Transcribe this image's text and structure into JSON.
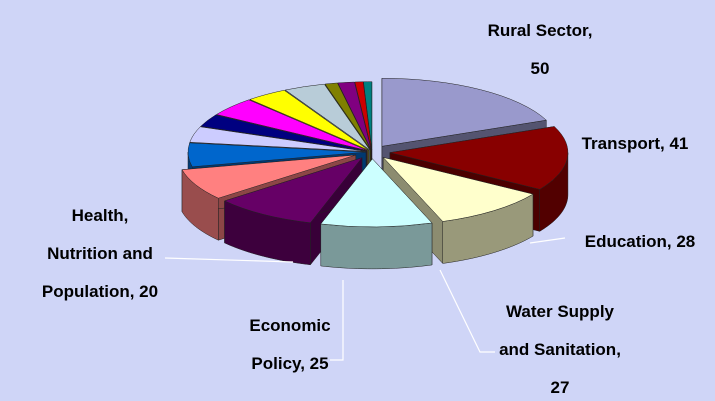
{
  "chart_data": {
    "type": "pie3d",
    "categories": [
      "Rural Sector",
      "Transport",
      "Education",
      "Water Supply and Sanitation",
      "Economic Policy",
      "Health, Nutrition and Population",
      null,
      null,
      null,
      null,
      null,
      null,
      null,
      null,
      null,
      null
    ],
    "values": [
      50,
      41,
      28,
      27,
      25,
      20,
      15,
      10,
      8,
      12,
      10,
      10,
      3,
      4,
      2,
      2
    ],
    "value_labels": [
      "Rural Sector, 50",
      "Transport, 41",
      "Education, 28",
      "Water Supply and Sanitation, 27",
      "Economic Policy, 25",
      "Health, Nutrition and Population, 20",
      null,
      null,
      null,
      null,
      null,
      null,
      null,
      null,
      null,
      null
    ],
    "colors": [
      "#9999cc",
      "#880000",
      "#ffffcc",
      "#ccffff",
      "#660066",
      "#ff8080",
      "#0066cc",
      "#ccccff",
      "#000080",
      "#ff00ff",
      "#ffff00",
      "#b8ccd8",
      "#808000",
      "#800080",
      "#cc0000",
      "#008080"
    ]
  }
}
